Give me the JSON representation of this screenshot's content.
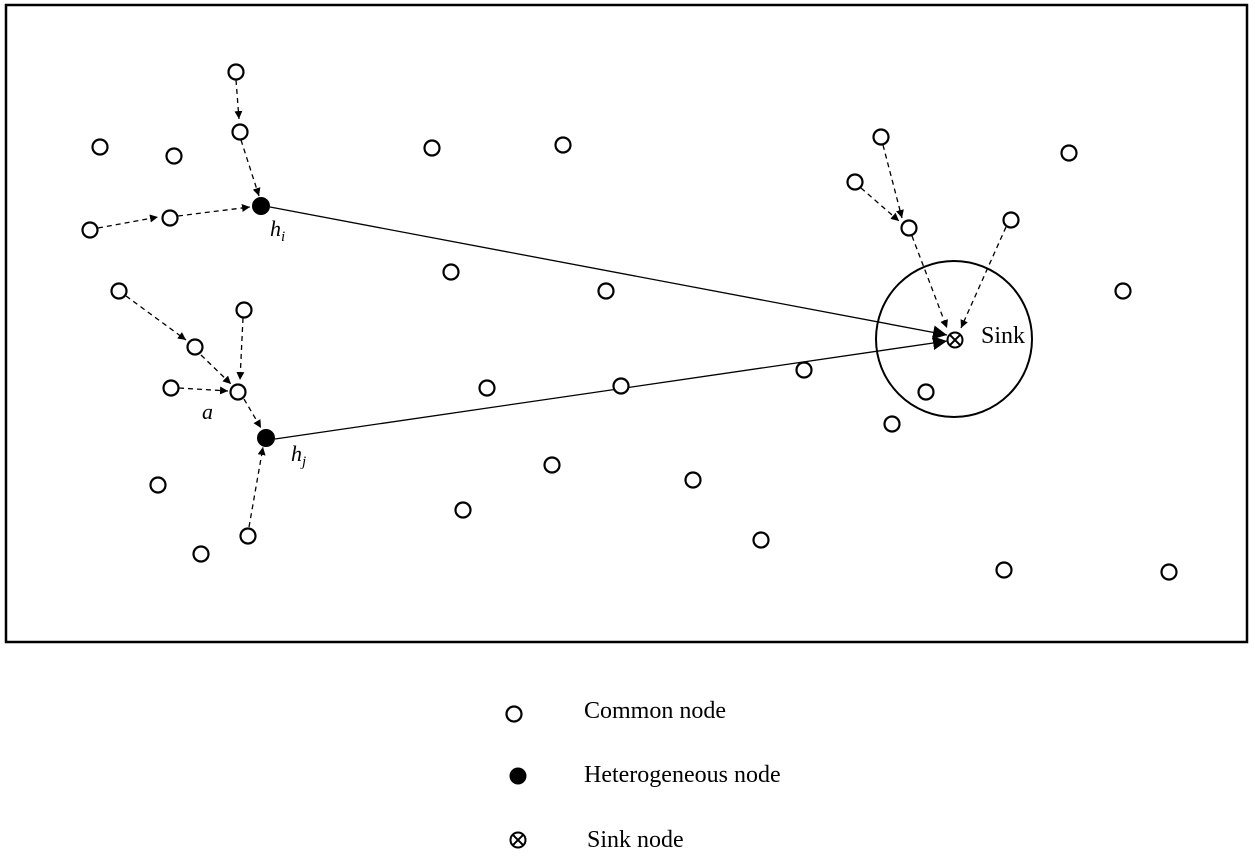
{
  "diagram": {
    "labels": {
      "hi_main": "h",
      "hi_sub": "i",
      "hj_main": "h",
      "hj_sub": "j",
      "a": "a",
      "sink": "Sink"
    },
    "legend": [
      {
        "symbol": "common",
        "text": "Common node"
      },
      {
        "symbol": "heterogeneous",
        "text": "Heterogeneous node"
      },
      {
        "symbol": "sink",
        "text": "Sink node"
      }
    ]
  }
}
